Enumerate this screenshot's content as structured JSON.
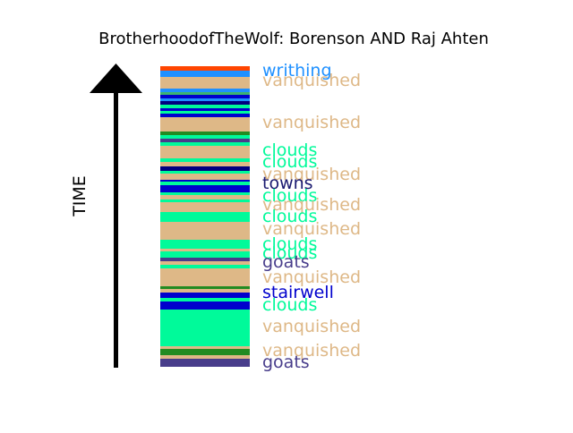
{
  "chart_data": {
    "type": "timeline-bands",
    "title": "BrotherhoodofTheWolf: Borenson AND Raj Ahten",
    "ylabel": "TIME",
    "bands": [
      {
        "color": "#FF4500"
      },
      {
        "color": "#1E90FF"
      },
      {
        "color": "#DEB887"
      },
      {
        "color": "#DEB887"
      },
      {
        "color": "#1E90FF"
      },
      {
        "color": "#3CB371"
      },
      {
        "color": "#0000CD"
      },
      {
        "color": "#1E90FF"
      },
      {
        "color": "#000080"
      },
      {
        "color": "#00FA9A"
      },
      {
        "color": "#0000CD"
      },
      {
        "color": "#00FA9A"
      },
      {
        "color": "#0000CD"
      },
      {
        "color": "#DEB887"
      },
      {
        "color": "#DEB887"
      },
      {
        "color": "#228B22"
      },
      {
        "color": "#00FA9A"
      },
      {
        "color": "#483D8B"
      },
      {
        "color": "#00FA9A"
      },
      {
        "color": "#DEB887"
      },
      {
        "color": "#00FA9A"
      },
      {
        "color": "#DEB887"
      },
      {
        "color": "#000080"
      },
      {
        "color": "#00FA9A"
      },
      {
        "color": "#DEB887"
      },
      {
        "color": "#0000CD"
      },
      {
        "color": "#00FA9A"
      },
      {
        "color": "#0000CD"
      },
      {
        "color": "#00FA9A"
      },
      {
        "color": "#DEB887"
      },
      {
        "color": "#00FA9A"
      },
      {
        "color": "#DEB887"
      },
      {
        "color": "#00FA9A"
      },
      {
        "color": "#DEB887"
      },
      {
        "color": "#00FA9A"
      },
      {
        "color": "#DEB887"
      },
      {
        "color": "#00FA9A"
      },
      {
        "color": "#483D8B"
      },
      {
        "color": "#DEB887"
      },
      {
        "color": "#00FA9A"
      },
      {
        "color": "#DEB887"
      },
      {
        "color": "#228B22"
      },
      {
        "color": "#DEB887"
      },
      {
        "color": "#0000CD"
      },
      {
        "color": "#00FA9A"
      },
      {
        "color": "#0000CD"
      },
      {
        "color": "#00FA9A"
      },
      {
        "color": "#DEB887"
      },
      {
        "color": "#228B22"
      },
      {
        "color": "#DEB887"
      },
      {
        "color": "#FF4500"
      },
      {
        "color": "#483D8B"
      }
    ],
    "labels": [
      {
        "text": "writhing",
        "color": "#1E90FF"
      },
      {
        "text": "vanquished",
        "color": "#DEB887"
      },
      {
        "text": "vanquished",
        "color": "#DEB887"
      },
      {
        "text": "clouds",
        "color": "#00FA9A"
      },
      {
        "text": "clouds",
        "color": "#00FA9A"
      },
      {
        "text": "vanquished",
        "color": "#DEB887"
      },
      {
        "text": "towns",
        "color": "#191970"
      },
      {
        "text": "clouds",
        "color": "#00FA9A"
      },
      {
        "text": "vanquished",
        "color": "#DEB887"
      },
      {
        "text": "clouds",
        "color": "#00FA9A"
      },
      {
        "text": "vanquished",
        "color": "#DEB887"
      },
      {
        "text": "clouds",
        "color": "#00FA9A"
      },
      {
        "text": "clouds",
        "color": "#00FA9A"
      },
      {
        "text": "goats",
        "color": "#483D8B"
      },
      {
        "text": "vanquished",
        "color": "#DEB887"
      },
      {
        "text": "stairwell",
        "color": "#0000CD"
      },
      {
        "text": "clouds",
        "color": "#00FA9A"
      },
      {
        "text": "vanquished",
        "color": "#DEB887"
      },
      {
        "text": "vanquished",
        "color": "#DEB887"
      },
      {
        "text": "goats",
        "color": "#483D8B"
      }
    ]
  }
}
